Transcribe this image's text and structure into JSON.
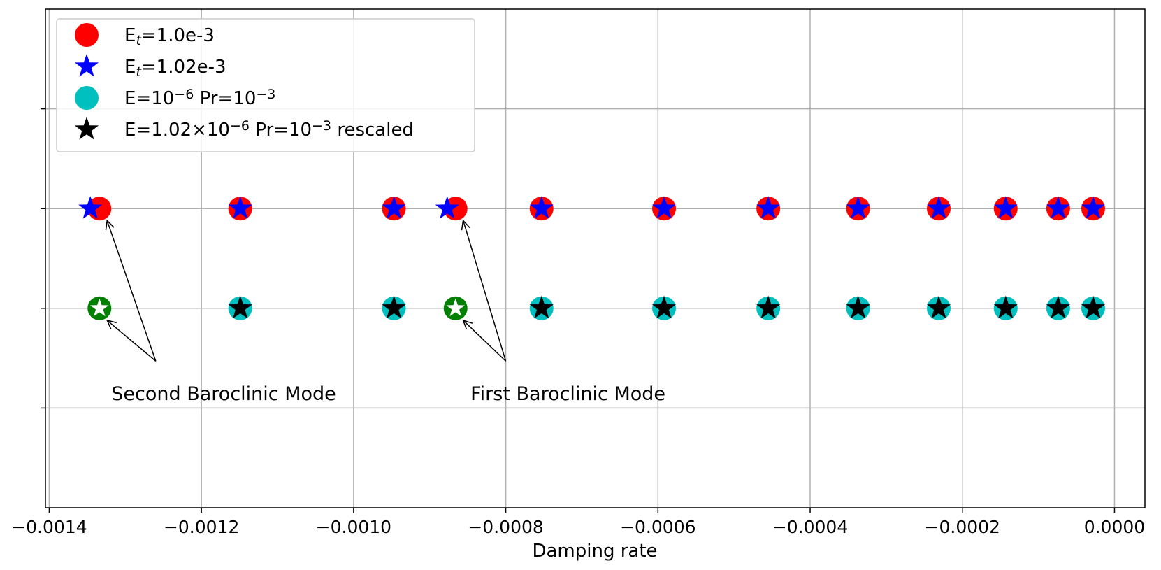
{
  "chart_data": {
    "type": "scatter",
    "title": "",
    "xlabel": "Damping rate",
    "ylabel": "",
    "xlim": [
      -0.001405,
      4e-05
    ],
    "ylim": [
      -0.5,
      4.5
    ],
    "x_ticks": [
      -0.0014,
      -0.0012,
      -0.001,
      -0.0008,
      -0.0006,
      -0.0004,
      -0.0002,
      0.0
    ],
    "x_tick_labels": [
      "−0.0014",
      "−0.0012",
      "−0.0010",
      "−0.0008",
      "−0.0006",
      "−0.0004",
      "−0.0002",
      "0.0000"
    ],
    "y_gridlines": [
      0.5,
      1.5,
      2.5,
      3.5
    ],
    "grid": true,
    "legend_position": "top-left",
    "series": [
      {
        "name": "E_t=1.0e-3",
        "legend_parts": [
          [
            "E",
            "n"
          ],
          [
            "t",
            "sub"
          ],
          [
            "=1.0e-3",
            "n"
          ]
        ],
        "marker": "circle",
        "color": "#ff0000",
        "y": 2.5,
        "x": [
          -0.001334,
          -0.001149,
          -0.000947,
          -0.000866,
          -0.000753,
          -0.000592,
          -0.000455,
          -0.000337,
          -0.000231,
          -0.000143,
          -7.4e-05,
          -2.8e-05
        ]
      },
      {
        "name": "E_t=1.02e-3",
        "legend_parts": [
          [
            "E",
            "n"
          ],
          [
            "t",
            "sub"
          ],
          [
            "=1.02e-3",
            "n"
          ]
        ],
        "marker": "star",
        "color": "#0000ff",
        "y": 2.5,
        "x": [
          -0.001346,
          -0.001149,
          -0.000947,
          -0.000877,
          -0.000753,
          -0.000592,
          -0.000455,
          -0.000337,
          -0.000231,
          -0.000143,
          -7.4e-05,
          -2.8e-05
        ]
      },
      {
        "name": "E=10^-6 Pr=10^-3",
        "legend_parts": [
          [
            "E=10",
            "n"
          ],
          [
            "−6",
            "sup"
          ],
          [
            " Pr=10",
            "n"
          ],
          [
            "−3",
            "sup"
          ]
        ],
        "marker": "circle",
        "color": "#00bfbf",
        "y": 1.5,
        "x": [
          -0.001149,
          -0.000947,
          -0.000753,
          -0.000592,
          -0.000455,
          -0.000337,
          -0.000231,
          -0.000143,
          -7.4e-05,
          -2.8e-05
        ]
      },
      {
        "name": "E=1.02x10^-6 Pr=10^-3 rescaled",
        "legend_parts": [
          [
            "E=1.02×10",
            "n"
          ],
          [
            "−6",
            "sup"
          ],
          [
            " Pr=10",
            "n"
          ],
          [
            "−3",
            "sup"
          ],
          [
            " rescaled",
            "n"
          ]
        ],
        "marker": "star",
        "color": "#000000",
        "y": 1.5,
        "x": [
          -0.001149,
          -0.000947,
          -0.000753,
          -0.000592,
          -0.000455,
          -0.000337,
          -0.000231,
          -0.000143,
          -7.4e-05,
          -2.8e-05
        ]
      }
    ],
    "highlighted_points": {
      "circle_color": "#008000",
      "star_color": "#ffffff",
      "y": 1.5,
      "x": [
        -0.001334,
        -0.000866
      ]
    },
    "annotations": [
      {
        "text": "Second Baroclinic Mode",
        "text_x": -0.001334,
        "text_y": 0.65,
        "label_anchor": [
          -0.00126,
          0.97
        ],
        "targets": [
          [
            -0.001324,
            2.38
          ],
          [
            -0.001324,
            1.38
          ]
        ]
      },
      {
        "text": "First Baroclinic Mode",
        "text_x": -0.000862,
        "text_y": 0.65,
        "label_anchor": [
          -0.0008,
          0.97
        ],
        "targets": [
          [
            -0.000856,
            2.38
          ],
          [
            -0.000856,
            1.38
          ]
        ]
      }
    ]
  }
}
